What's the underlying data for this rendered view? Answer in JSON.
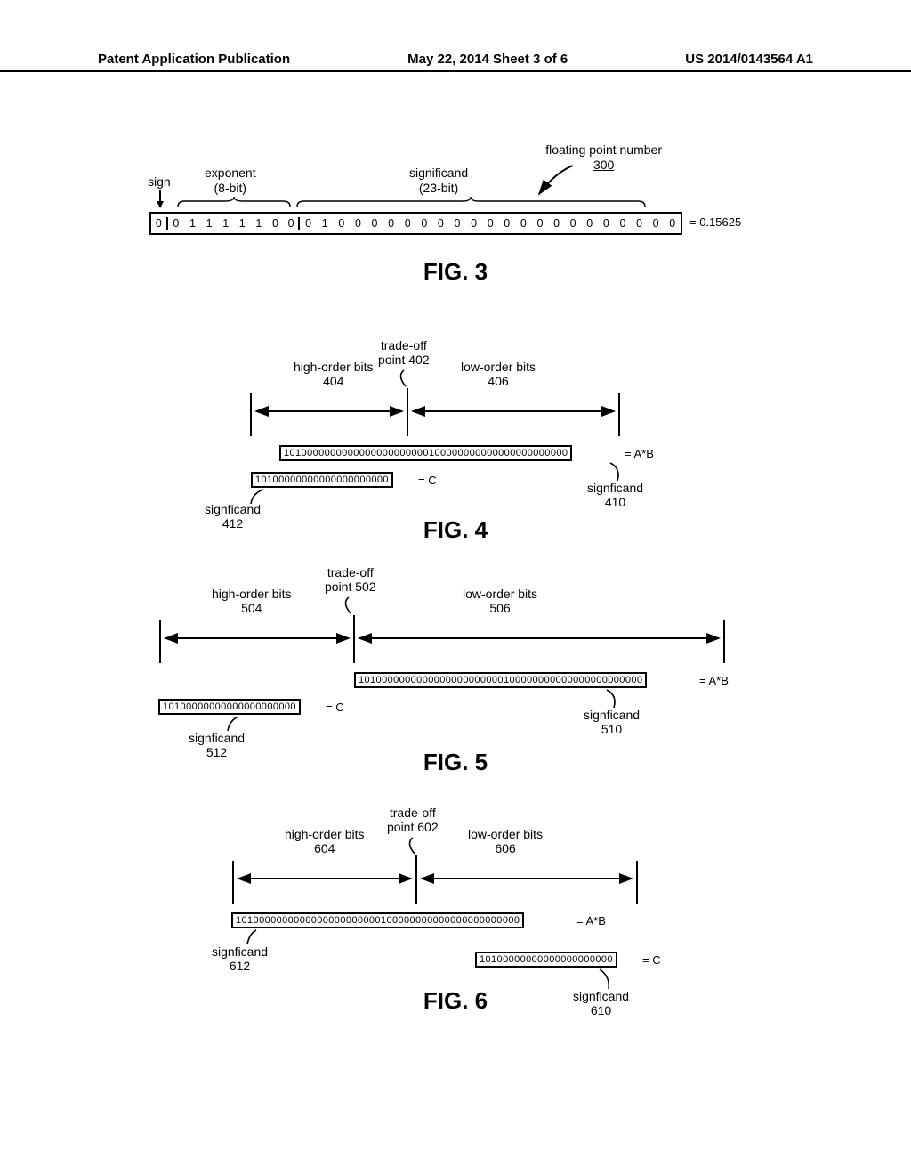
{
  "header": {
    "left": "Patent Application Publication",
    "center": "May 22, 2014  Sheet 3 of 6",
    "right": "US 2014/0143564 A1"
  },
  "fig3": {
    "fpn_label_line1": "floating point number",
    "fpn_label_line2": "300",
    "sign_label": "sign",
    "exp_label_line1": "exponent",
    "exp_label_line2": "(8-bit)",
    "sig_label_line1": "significand",
    "sig_label_line2": "(23-bit)",
    "bits_sign": "0",
    "bits_exp": [
      "0",
      "1",
      "1",
      "1",
      "1",
      "1",
      "0",
      "0"
    ],
    "bits_sig": [
      "0",
      "1",
      "0",
      "0",
      "0",
      "0",
      "0",
      "0",
      "0",
      "0",
      "0",
      "0",
      "0",
      "0",
      "0",
      "0",
      "0",
      "0",
      "0",
      "0",
      "0",
      "0",
      "0"
    ],
    "eq_value": "=  0.15625",
    "title": "FIG. 3"
  },
  "fig4": {
    "trade_label_line1": "trade-off",
    "trade_label_line2": "point 402",
    "ho_label_line1": "high-order bits",
    "ho_label_line2": "404",
    "lo_label_line1": "low-order bits",
    "lo_label_line2": "406",
    "ab_bits": "1010000000000000000000000100000000000000000000000",
    "ab_eq": "=  A*B",
    "c_bits": "10100000000000000000000",
    "c_eq": "=  C",
    "sig_left_line1": "signficand",
    "sig_left_line2": "412",
    "sig_right_line1": "signficand",
    "sig_right_line2": "410",
    "title": "FIG. 4"
  },
  "fig5": {
    "trade_label_line1": "trade-off",
    "trade_label_line2": "point 502",
    "ho_label_line1": "high-order bits",
    "ho_label_line2": "504",
    "lo_label_line1": "low-order bits",
    "lo_label_line2": "506",
    "ab_bits": "1010000000000000000000000100000000000000000000000",
    "ab_eq": "=  A*B",
    "c_bits": "10100000000000000000000",
    "c_eq": "=  C",
    "sig_left_line1": "signficand",
    "sig_left_line2": "512",
    "sig_right_line1": "signficand",
    "sig_right_line2": "510",
    "title": "FIG. 5"
  },
  "fig6": {
    "trade_label_line1": "trade-off",
    "trade_label_line2": "point 602",
    "ho_label_line1": "high-order bits",
    "ho_label_line2": "604",
    "lo_label_line1": "low-order bits",
    "lo_label_line2": "606",
    "ab_bits": "1010000000000000000000000100000000000000000000000",
    "ab_eq": "=  A*B",
    "c_bits": "10100000000000000000000",
    "c_eq": "=  C",
    "sig_left_line1": "signficand",
    "sig_left_line2": "612",
    "sig_right_line1": "signficand",
    "sig_right_line2": "610",
    "title": "FIG. 6"
  },
  "style": {
    "stroke": "#000000",
    "stroke_width": 2,
    "brace_stroke_width": 1.4
  }
}
